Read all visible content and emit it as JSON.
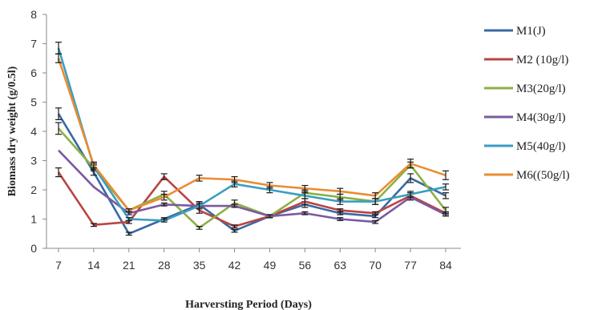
{
  "chart_data": {
    "type": "line",
    "title": "",
    "xlabel": "Harversting Period (Days)",
    "ylabel": "Biomass dry weight (g/0.5l)",
    "ylim": [
      0,
      8
    ],
    "yticks": [
      0,
      1,
      2,
      3,
      4,
      5,
      6,
      7,
      8
    ],
    "categories": [
      "7",
      "14",
      "21",
      "28",
      "35",
      "42",
      "49",
      "56",
      "63",
      "70",
      "77",
      "84"
    ],
    "grid": false,
    "legend": "right",
    "error_bars": true,
    "series": [
      {
        "name": "M1(J)",
        "color": "#3b68a4",
        "values": [
          4.6,
          2.6,
          0.5,
          1.0,
          1.5,
          0.6,
          1.1,
          1.5,
          1.2,
          1.1,
          2.4,
          1.8
        ],
        "errors": [
          0.2,
          0.1,
          0.05,
          0.05,
          0.1,
          0.05,
          0.05,
          0.1,
          0.05,
          0.05,
          0.15,
          0.1
        ]
      },
      {
        "name": "M2 (10g/l)",
        "color": "#b94543",
        "values": [
          2.6,
          0.8,
          0.9,
          2.45,
          1.3,
          0.75,
          1.1,
          1.6,
          1.3,
          1.2,
          1.8,
          1.2
        ],
        "errors": [
          0.15,
          0.05,
          0.05,
          0.1,
          0.1,
          0.05,
          0.05,
          0.1,
          0.05,
          0.05,
          0.1,
          0.05
        ]
      },
      {
        "name": "M3(20g/l)",
        "color": "#8db045",
        "values": [
          4.1,
          2.75,
          1.3,
          1.85,
          0.7,
          1.55,
          1.1,
          1.9,
          1.75,
          1.6,
          2.85,
          1.3
        ],
        "errors": [
          0.2,
          0.1,
          0.05,
          0.1,
          0.05,
          0.1,
          0.05,
          0.1,
          0.1,
          0.1,
          0.1,
          0.1
        ]
      },
      {
        "name": "M4(30g/l)",
        "color": "#7a5aa0",
        "values": [
          3.35,
          2.1,
          1.2,
          1.5,
          1.45,
          1.45,
          1.1,
          1.2,
          1.0,
          0.9,
          1.75,
          1.15
        ],
        "errors": [
          0.0,
          0.0,
          0.05,
          0.05,
          0.05,
          0.05,
          0.05,
          0.05,
          0.05,
          0.05,
          0.1,
          0.05
        ]
      },
      {
        "name": "M5(40g/l)",
        "color": "#3a9ec0",
        "values": [
          6.85,
          2.8,
          1.0,
          0.95,
          1.45,
          2.2,
          2.0,
          1.8,
          1.6,
          1.6,
          1.85,
          2.1
        ],
        "errors": [
          0.2,
          0.1,
          0.05,
          0.05,
          0.1,
          0.1,
          0.1,
          0.1,
          0.1,
          0.1,
          0.1,
          0.1
        ]
      },
      {
        "name": "M6((50g/l)",
        "color": "#ea8c33",
        "values": [
          6.5,
          2.85,
          1.3,
          1.75,
          2.4,
          2.35,
          2.15,
          2.05,
          1.95,
          1.8,
          2.9,
          2.5
        ],
        "errors": [
          0.15,
          0.1,
          0.05,
          0.1,
          0.1,
          0.1,
          0.1,
          0.1,
          0.1,
          0.1,
          0.15,
          0.15
        ]
      }
    ]
  }
}
